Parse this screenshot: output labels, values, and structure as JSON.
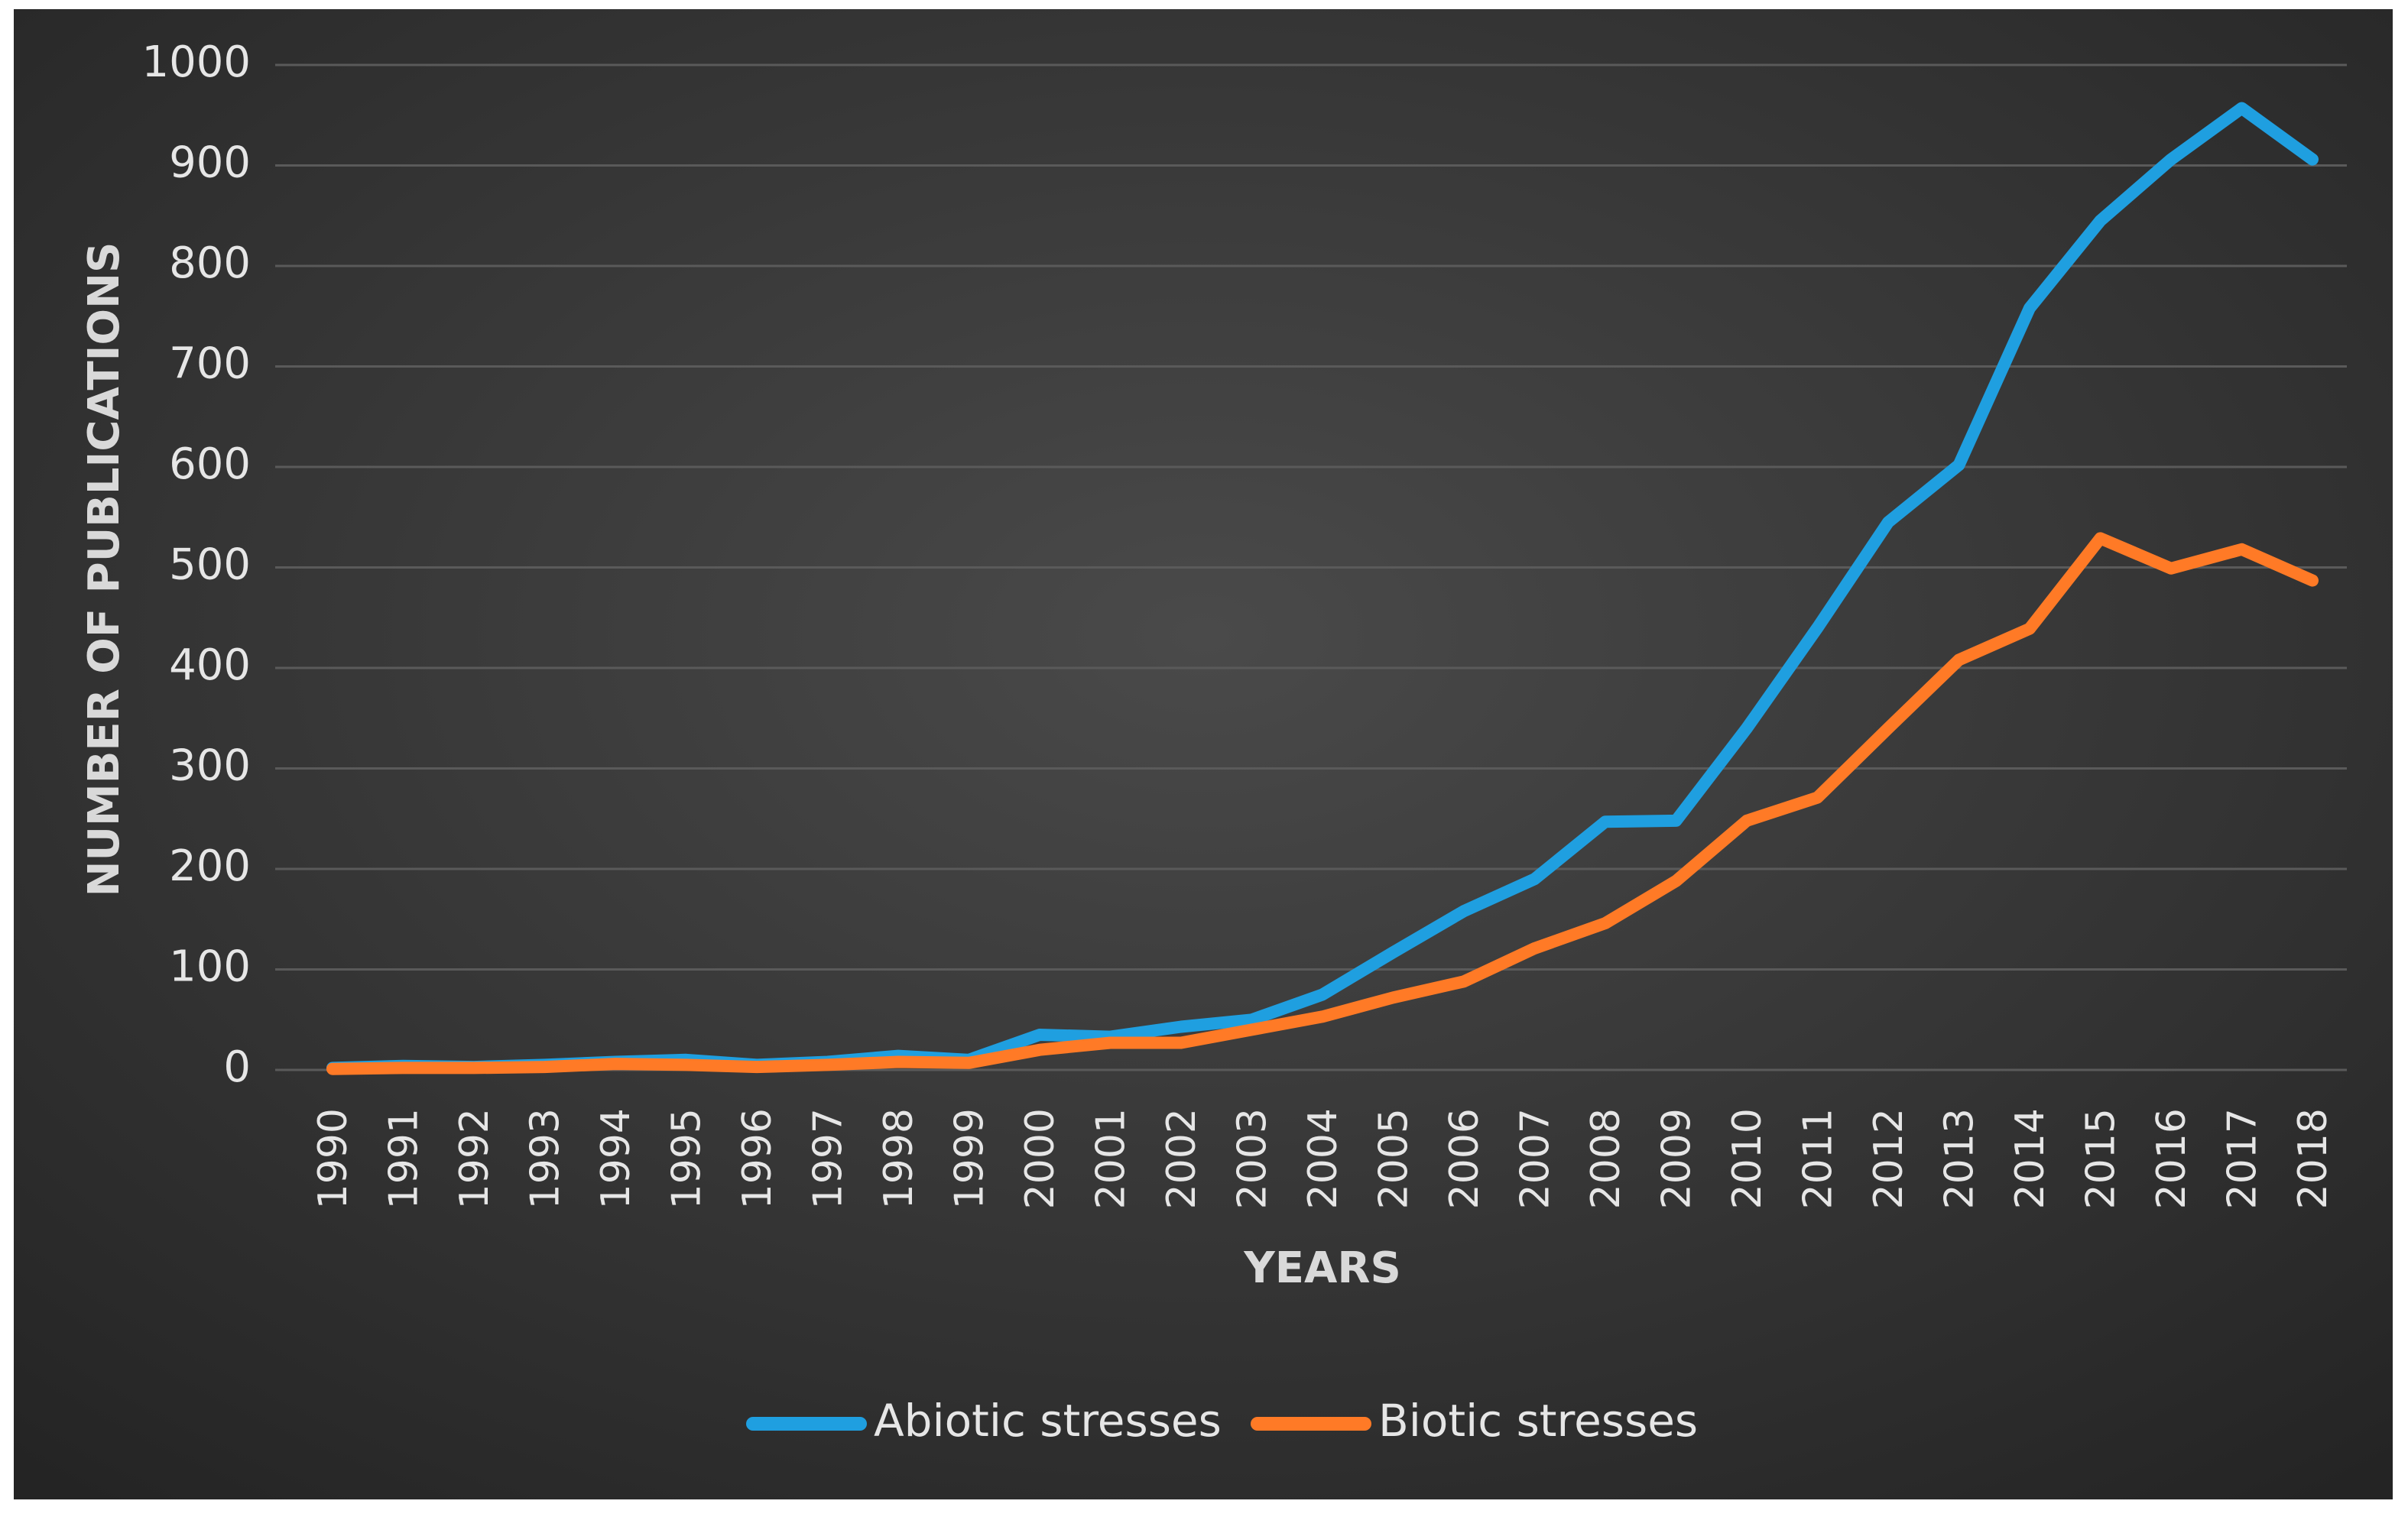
{
  "chart_data": {
    "type": "line",
    "title": "",
    "xlabel": "YEARS",
    "ylabel": "NUMBER OF PUBLICATIONS",
    "ylim": [
      0,
      1000
    ],
    "yticks": [
      "0",
      "100",
      "200",
      "300",
      "400",
      "500",
      "600",
      "700",
      "800",
      "900",
      "1000"
    ],
    "grid": true,
    "legend_position": "bottom",
    "categories": [
      "1990",
      "1991",
      "1992",
      "1993",
      "1994",
      "1995",
      "1996",
      "1997",
      "1998",
      "1999",
      "2000",
      "2001",
      "2002",
      "2003",
      "2004",
      "2005",
      "2006",
      "2007",
      "2008",
      "2009",
      "2010",
      "2011",
      "2012",
      "2013",
      "2014",
      "2015",
      "2016",
      "2017",
      "2018"
    ],
    "series": [
      {
        "name": "Abiotic stresses",
        "color": "#1f9fe0",
        "values": [
          2,
          4,
          3,
          5,
          8,
          10,
          5,
          8,
          14,
          10,
          35,
          33,
          43,
          50,
          75,
          117,
          158,
          190,
          247,
          248,
          340,
          440,
          545,
          602,
          758,
          845,
          906,
          957,
          906
        ]
      },
      {
        "name": "Biotic stresses",
        "color": "#ff7a26",
        "values": [
          1,
          2,
          2,
          3,
          6,
          5,
          3,
          5,
          8,
          7,
          20,
          27,
          27,
          40,
          53,
          72,
          88,
          121,
          146,
          188,
          248,
          271,
          340,
          408,
          439,
          529,
          499,
          518,
          487
        ]
      }
    ],
    "background": "#2e2e2e"
  }
}
